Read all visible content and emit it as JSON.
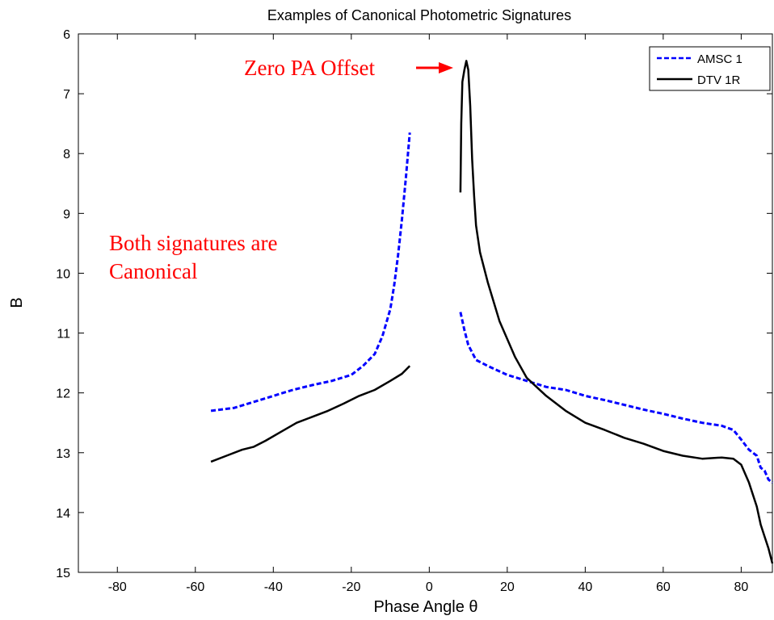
{
  "chart_data": {
    "type": "line",
    "title": "Examples of Canonical Photometric Signatures",
    "xlabel": "Phase Angle θ",
    "ylabel": "B",
    "xlim": [
      -90,
      88
    ],
    "ylim": [
      6,
      15
    ],
    "y_reversed": true,
    "x_ticks": [
      -80,
      -60,
      -40,
      -20,
      0,
      20,
      40,
      60,
      80
    ],
    "y_ticks": [
      6,
      7,
      8,
      9,
      10,
      11,
      12,
      13,
      14,
      15
    ],
    "grid": false,
    "legend_position": "top-right",
    "series": [
      {
        "name": "AMSC 1",
        "color": "#0000ff",
        "style": "dashed",
        "segments": [
          [
            [
              -56,
              12.3
            ],
            [
              -50,
              12.25
            ],
            [
              -45,
              12.15
            ],
            [
              -40,
              12.05
            ],
            [
              -35,
              11.95
            ],
            [
              -30,
              11.87
            ],
            [
              -25,
              11.8
            ],
            [
              -20,
              11.7
            ],
            [
              -17,
              11.55
            ],
            [
              -14,
              11.35
            ],
            [
              -12,
              11.05
            ],
            [
              -10,
              10.6
            ],
            [
              -9,
              10.2
            ],
            [
              -8,
              9.7
            ],
            [
              -7,
              9.1
            ],
            [
              -6,
              8.4
            ],
            [
              -5,
              7.65
            ]
          ],
          [
            [
              8,
              10.65
            ],
            [
              9,
              10.95
            ],
            [
              10,
              11.2
            ],
            [
              12,
              11.45
            ],
            [
              15,
              11.55
            ],
            [
              20,
              11.7
            ],
            [
              25,
              11.8
            ],
            [
              30,
              11.9
            ],
            [
              35,
              11.95
            ],
            [
              40,
              12.05
            ],
            [
              45,
              12.12
            ],
            [
              50,
              12.2
            ],
            [
              55,
              12.28
            ],
            [
              60,
              12.35
            ],
            [
              65,
              12.43
            ],
            [
              70,
              12.5
            ],
            [
              75,
              12.55
            ],
            [
              78,
              12.62
            ],
            [
              80,
              12.78
            ],
            [
              82,
              12.95
            ],
            [
              84,
              13.05
            ],
            [
              85,
              13.25
            ],
            [
              86,
              13.3
            ],
            [
              87,
              13.45
            ],
            [
              88,
              13.5
            ]
          ]
        ]
      },
      {
        "name": "DTV 1R",
        "color": "#000000",
        "style": "solid",
        "segments": [
          [
            [
              -56,
              13.15
            ],
            [
              -52,
              13.05
            ],
            [
              -48,
              12.95
            ],
            [
              -45,
              12.9
            ],
            [
              -42,
              12.8
            ],
            [
              -38,
              12.65
            ],
            [
              -34,
              12.5
            ],
            [
              -30,
              12.4
            ],
            [
              -26,
              12.3
            ],
            [
              -22,
              12.18
            ],
            [
              -18,
              12.05
            ],
            [
              -14,
              11.95
            ],
            [
              -10,
              11.8
            ],
            [
              -7,
              11.68
            ],
            [
              -5,
              11.55
            ]
          ],
          [
            [
              8,
              8.65
            ],
            [
              8.2,
              7.5
            ],
            [
              8.5,
              6.8
            ],
            [
              9,
              6.6
            ],
            [
              9.5,
              6.45
            ],
            [
              10,
              6.6
            ],
            [
              10.5,
              7.2
            ],
            [
              11,
              8.1
            ],
            [
              11.5,
              8.7
            ],
            [
              12,
              9.2
            ],
            [
              13,
              9.65
            ],
            [
              15,
              10.15
            ],
            [
              18,
              10.8
            ],
            [
              22,
              11.4
            ],
            [
              25,
              11.75
            ],
            [
              30,
              12.05
            ],
            [
              35,
              12.3
            ],
            [
              40,
              12.5
            ],
            [
              45,
              12.62
            ],
            [
              50,
              12.75
            ],
            [
              55,
              12.85
            ],
            [
              60,
              12.97
            ],
            [
              65,
              13.05
            ],
            [
              70,
              13.1
            ],
            [
              75,
              13.08
            ],
            [
              78,
              13.1
            ],
            [
              80,
              13.2
            ],
            [
              82,
              13.5
            ],
            [
              84,
              13.9
            ],
            [
              85,
              14.2
            ],
            [
              86,
              14.4
            ],
            [
              87,
              14.6
            ],
            [
              88,
              14.85
            ]
          ]
        ]
      }
    ]
  },
  "annotations": {
    "zero_pa_offset": "Zero PA Offset",
    "canonical_line1": "Both signatures are",
    "canonical_line2": "Canonical",
    "color": "#ff0000"
  }
}
